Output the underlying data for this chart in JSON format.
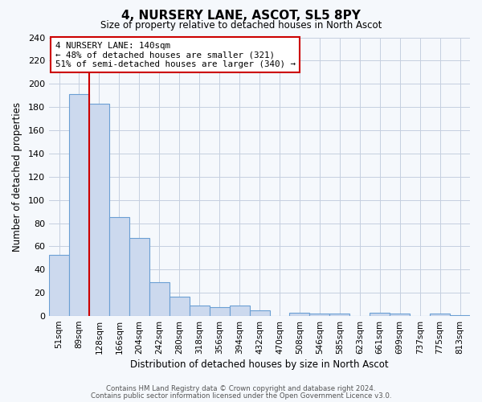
{
  "title": "4, NURSERY LANE, ASCOT, SL5 8PY",
  "subtitle": "Size of property relative to detached houses in North Ascot",
  "xlabel": "Distribution of detached houses by size in North Ascot",
  "ylabel": "Number of detached properties",
  "bar_labels": [
    "51sqm",
    "89sqm",
    "128sqm",
    "166sqm",
    "204sqm",
    "242sqm",
    "280sqm",
    "318sqm",
    "356sqm",
    "394sqm",
    "432sqm",
    "470sqm",
    "508sqm",
    "546sqm",
    "585sqm",
    "623sqm",
    "661sqm",
    "699sqm",
    "737sqm",
    "775sqm",
    "813sqm"
  ],
  "bar_values": [
    53,
    191,
    183,
    85,
    67,
    29,
    17,
    9,
    8,
    9,
    5,
    0,
    3,
    2,
    2,
    0,
    3,
    2,
    0,
    2,
    1
  ],
  "bar_color": "#ccd9ee",
  "bar_edge_color": "#6b9fd4",
  "property_line_color": "#cc0000",
  "annotation_text": "4 NURSERY LANE: 140sqm\n← 48% of detached houses are smaller (321)\n51% of semi-detached houses are larger (340) →",
  "annotation_box_color": "#ffffff",
  "annotation_box_edge": "#cc0000",
  "ylim": [
    0,
    240
  ],
  "yticks": [
    0,
    20,
    40,
    60,
    80,
    100,
    120,
    140,
    160,
    180,
    200,
    220,
    240
  ],
  "footer1": "Contains HM Land Registry data © Crown copyright and database right 2024.",
  "footer2": "Contains public sector information licensed under the Open Government Licence v3.0.",
  "bg_color": "#f5f8fc",
  "plot_bg_color": "#f5f8fc",
  "grid_color": "#c5cfe0"
}
